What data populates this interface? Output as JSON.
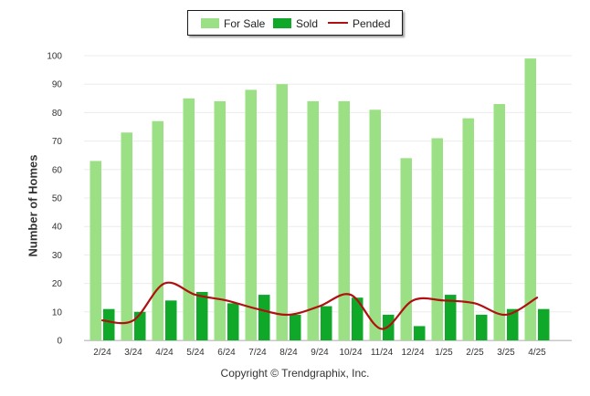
{
  "legend": {
    "items": [
      {
        "label": "For Sale",
        "color": "#9be084",
        "kind": "bar"
      },
      {
        "label": "Sold",
        "color": "#10a829",
        "kind": "bar"
      },
      {
        "label": "Pended",
        "color": "#b01010",
        "kind": "line"
      }
    ]
  },
  "footer": "Copyright © Trendgraphix, Inc.",
  "chart_data": {
    "type": "bar",
    "title": "",
    "xlabel": "",
    "ylabel": "Number of Homes",
    "ylim": [
      0,
      100
    ],
    "yticks": [
      0,
      10,
      20,
      30,
      40,
      50,
      60,
      70,
      80,
      90,
      100
    ],
    "grid": true,
    "legend_position": "top-center",
    "categories": [
      "2/24",
      "3/24",
      "4/24",
      "5/24",
      "6/24",
      "7/24",
      "8/24",
      "9/24",
      "10/24",
      "11/24",
      "12/24",
      "1/25",
      "2/25",
      "3/25",
      "4/25"
    ],
    "series": [
      {
        "name": "For Sale",
        "type": "bar",
        "color": "#9be084",
        "values": [
          63,
          73,
          77,
          85,
          84,
          88,
          90,
          84,
          84,
          81,
          64,
          71,
          78,
          83,
          99
        ]
      },
      {
        "name": "Sold",
        "type": "bar",
        "color": "#10a829",
        "values": [
          11,
          10,
          14,
          17,
          13,
          16,
          9,
          12,
          15,
          9,
          5,
          16,
          9,
          11,
          11
        ]
      },
      {
        "name": "Pended",
        "type": "line",
        "color": "#b01010",
        "values": [
          7,
          7,
          20,
          16,
          14,
          11,
          9,
          12,
          16,
          4,
          14,
          14,
          13,
          9,
          15
        ]
      }
    ]
  }
}
